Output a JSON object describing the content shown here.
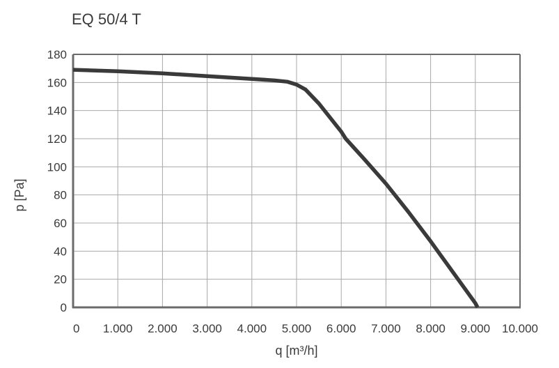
{
  "chart_data": {
    "type": "line",
    "title": "EQ 50/4 T",
    "xlabel": "q [m³/h]",
    "ylabel": "p [Pa]",
    "xlim": [
      0,
      10000
    ],
    "ylim": [
      0,
      180
    ],
    "x_ticks": [
      0,
      1000,
      2000,
      3000,
      4000,
      5000,
      6000,
      7000,
      8000,
      9000,
      10000
    ],
    "x_tick_labels": [
      "0",
      "1.000",
      "2.000",
      "3.000",
      "4.000",
      "5.000",
      "6.000",
      "7.000",
      "8.000",
      "9.000",
      "10.000"
    ],
    "y_ticks": [
      0,
      20,
      40,
      60,
      80,
      100,
      120,
      140,
      160,
      180
    ],
    "y_tick_labels": [
      "0",
      "20",
      "40",
      "60",
      "80",
      "100",
      "120",
      "140",
      "160",
      "180"
    ],
    "grid": true,
    "line_color": "#3a3a3a",
    "grid_color": "#a8a8a8",
    "axis_color": "#6b6b6b",
    "series": [
      {
        "x": [
          0,
          1000,
          2000,
          3000,
          4000,
          4500,
          4800,
          5000,
          5200,
          5500,
          6000,
          6100,
          6500,
          7000,
          7500,
          8000,
          8500,
          9000,
          9050
        ],
        "y": [
          169,
          168,
          166.5,
          164.5,
          162.5,
          161.5,
          160.5,
          158.5,
          155,
          145,
          125,
          120,
          106,
          88,
          68,
          47,
          25,
          3,
          0
        ]
      }
    ]
  }
}
